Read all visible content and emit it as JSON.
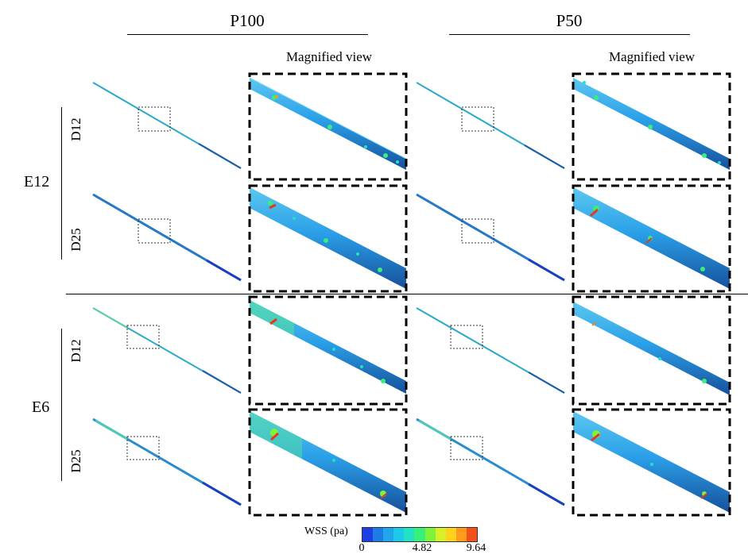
{
  "columns": [
    {
      "title": "P100",
      "magnified_label": "Magnified view"
    },
    {
      "title": "P50",
      "magnified_label": "Magnified view"
    }
  ],
  "row_groups": [
    {
      "label": "E12",
      "sub_rows": [
        "D12",
        "D25"
      ]
    },
    {
      "label": "E6",
      "sub_rows": [
        "D12",
        "D25"
      ]
    }
  ],
  "legend": {
    "title": "WSS (pa)",
    "ticks": [
      "0",
      "4.82",
      "9.64"
    ],
    "colors": [
      "#1b3fe0",
      "#1f7be6",
      "#22a6ea",
      "#1ec8e8",
      "#22e2c4",
      "#3aee7a",
      "#7ff23a",
      "#d7f02a",
      "#ffd21e",
      "#ff9a1a",
      "#f2521a"
    ]
  },
  "colors": {
    "vessel_base": "#2aa0e8",
    "vessel_dark": "#1a4fb8",
    "vessel_shadow": "#14509a",
    "hotspot_green": "#3aee7a",
    "hotspot_red": "#e23a1a",
    "thin_vessel": "#2aa8c8"
  }
}
